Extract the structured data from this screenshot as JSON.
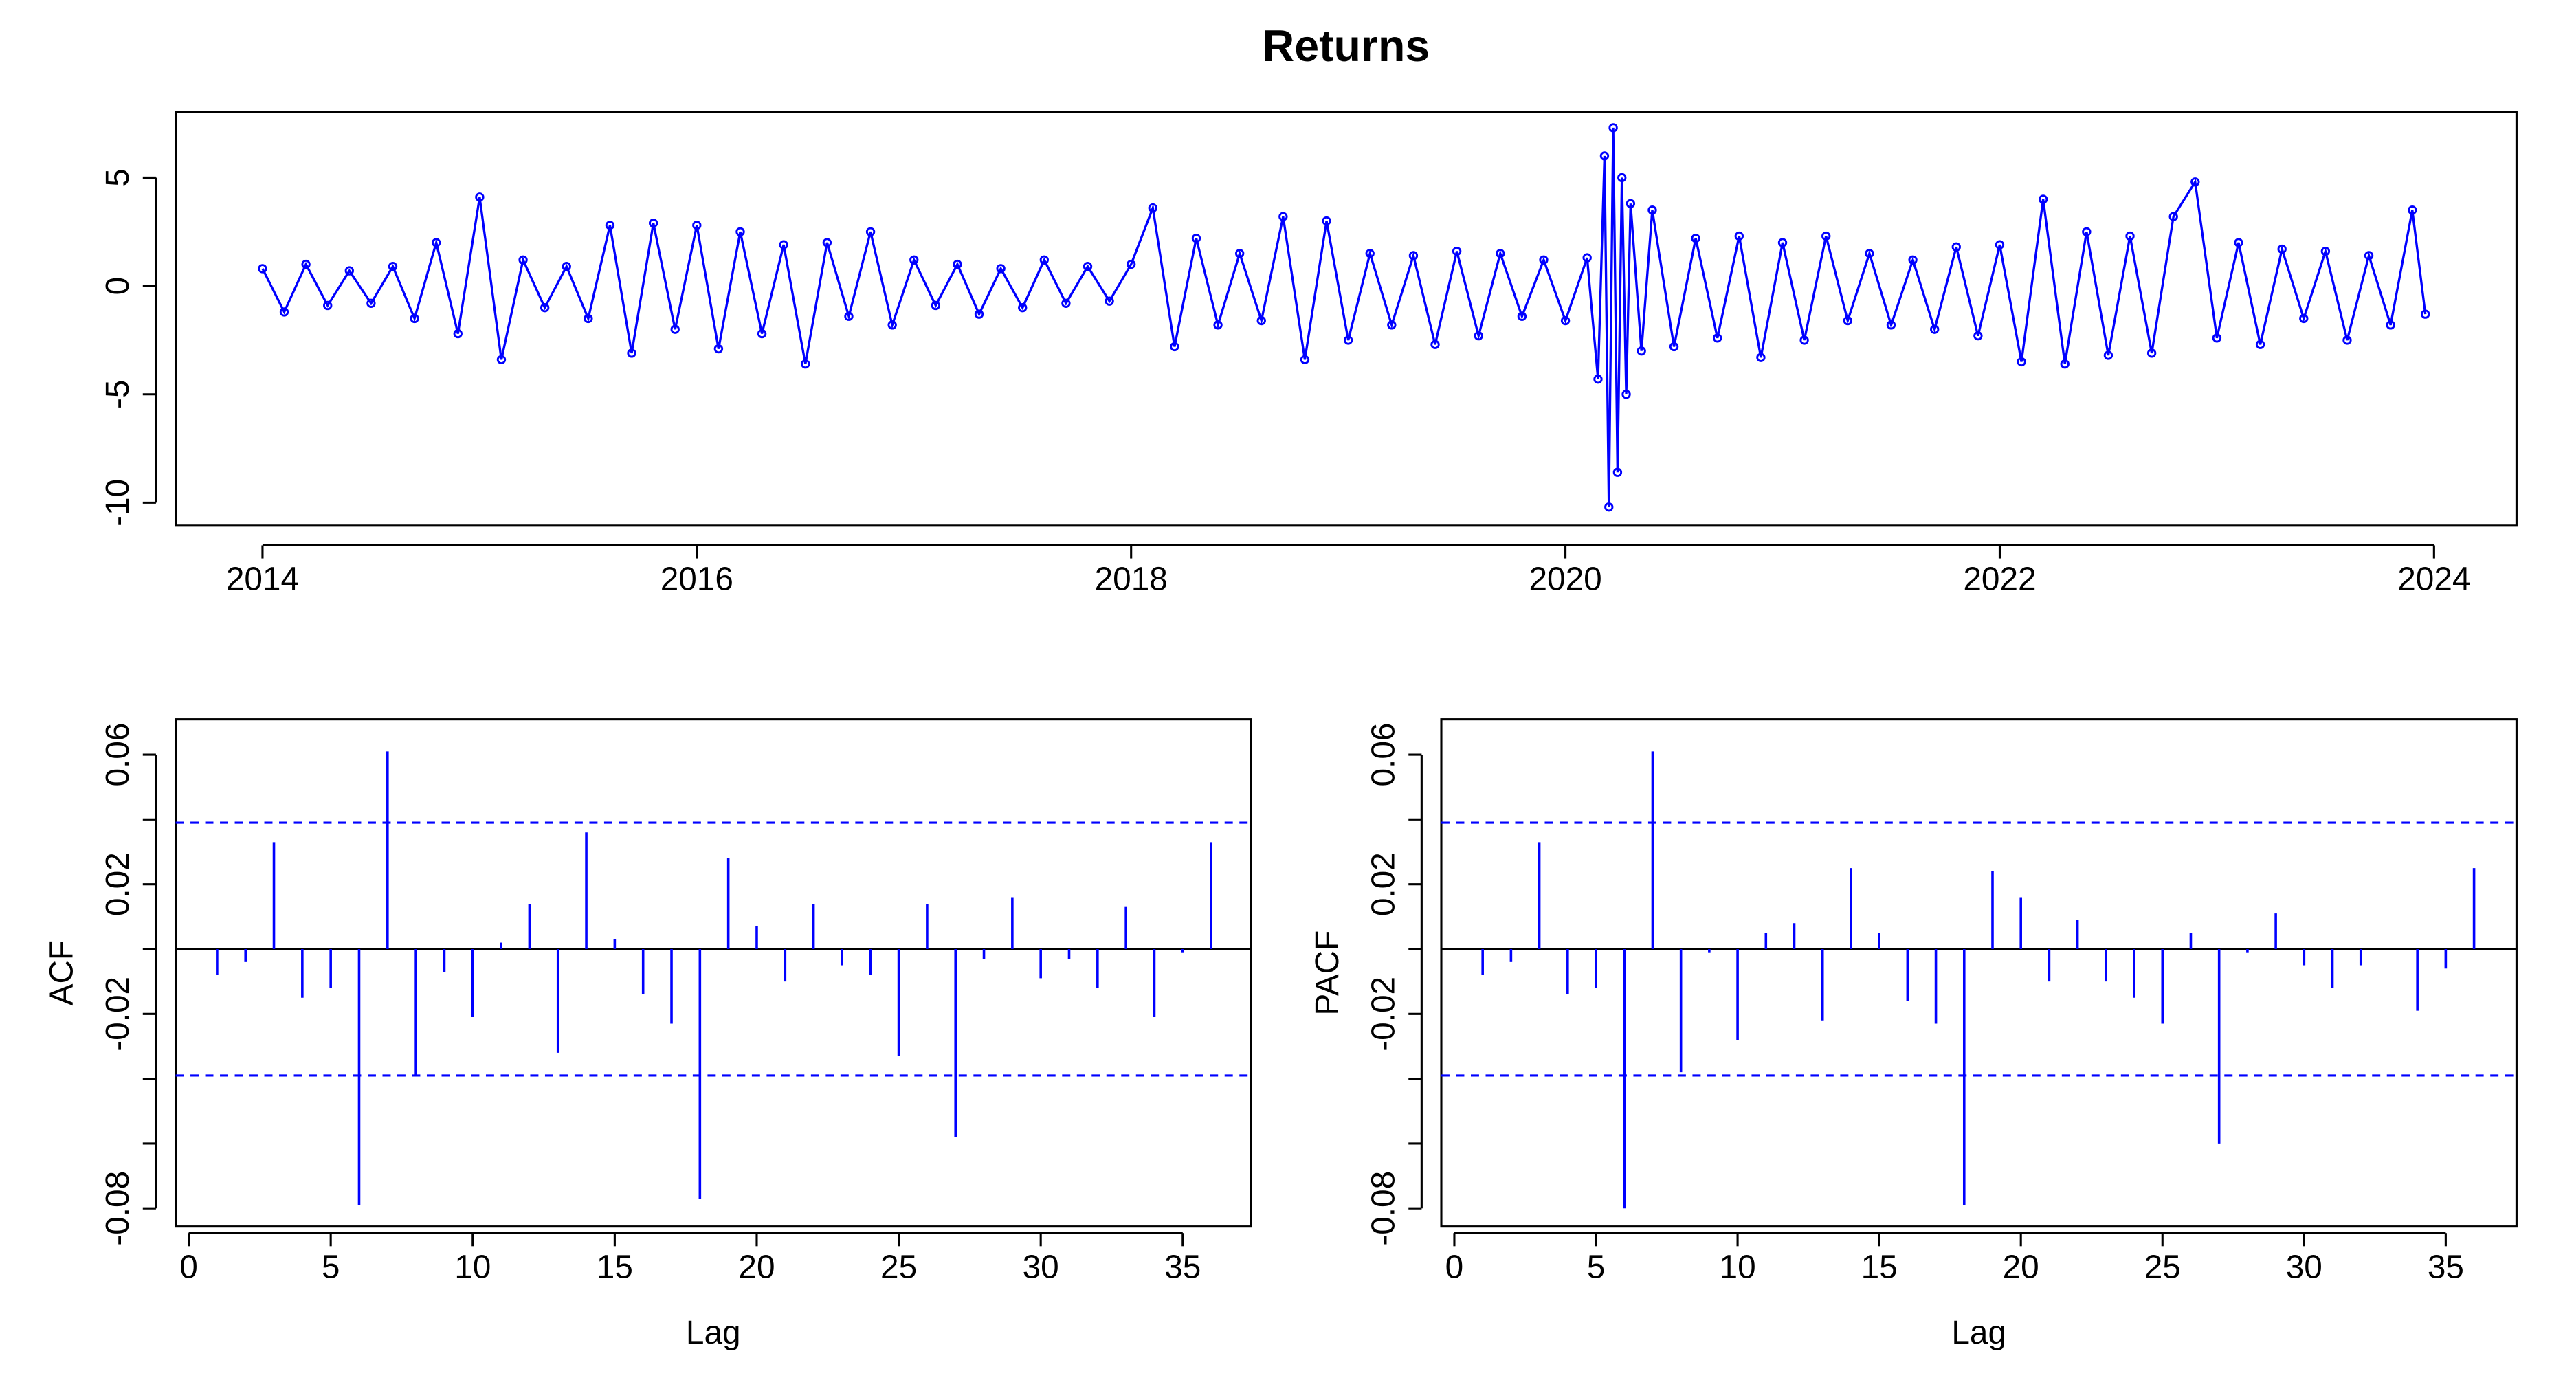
{
  "chart_data": [
    {
      "type": "line",
      "title": "Returns",
      "color": "#0000ff",
      "markers": true,
      "x": [
        2014.0,
        2014.1,
        2014.2,
        2014.3,
        2014.4,
        2014.5,
        2014.6,
        2014.7,
        2014.8,
        2014.9,
        2015.0,
        2015.1,
        2015.2,
        2015.3,
        2015.4,
        2015.5,
        2015.6,
        2015.7,
        2015.8,
        2015.9,
        2016.0,
        2016.1,
        2016.2,
        2016.3,
        2016.4,
        2016.5,
        2016.6,
        2016.7,
        2016.8,
        2016.9,
        2017.0,
        2017.1,
        2017.2,
        2017.3,
        2017.4,
        2017.5,
        2017.6,
        2017.7,
        2017.8,
        2017.9,
        2018.0,
        2018.1,
        2018.2,
        2018.3,
        2018.4,
        2018.5,
        2018.6,
        2018.7,
        2018.8,
        2018.9,
        2019.0,
        2019.1,
        2019.2,
        2019.3,
        2019.4,
        2019.5,
        2019.6,
        2019.7,
        2019.8,
        2019.9,
        2020.0,
        2020.1,
        2020.15,
        2020.18,
        2020.2,
        2020.22,
        2020.24,
        2020.26,
        2020.28,
        2020.3,
        2020.35,
        2020.4,
        2020.5,
        2020.6,
        2020.7,
        2020.8,
        2020.9,
        2021.0,
        2021.1,
        2021.2,
        2021.3,
        2021.4,
        2021.5,
        2021.6,
        2021.7,
        2021.8,
        2021.9,
        2022.0,
        2022.1,
        2022.2,
        2022.3,
        2022.4,
        2022.5,
        2022.6,
        2022.7,
        2022.8,
        2022.9,
        2023.0,
        2023.1,
        2023.2,
        2023.3,
        2023.4,
        2023.5,
        2023.6,
        2023.7,
        2023.8,
        2023.9,
        2023.96
      ],
      "values": [
        0.8,
        -1.2,
        1.0,
        -0.9,
        0.7,
        -0.8,
        0.9,
        -1.5,
        2.0,
        -2.2,
        4.1,
        -3.4,
        1.2,
        -1.0,
        0.9,
        -1.5,
        2.8,
        -3.1,
        2.9,
        -2.0,
        2.8,
        -2.9,
        2.5,
        -2.2,
        1.9,
        -3.6,
        2.0,
        -1.4,
        2.5,
        -1.8,
        1.2,
        -0.9,
        1.0,
        -1.3,
        0.8,
        -1.0,
        1.2,
        -0.8,
        0.9,
        -0.7,
        1.0,
        3.6,
        -2.8,
        2.2,
        -1.8,
        1.5,
        -1.6,
        3.2,
        -3.4,
        3.0,
        -2.5,
        1.5,
        -1.8,
        1.4,
        -2.7,
        1.6,
        -2.3,
        1.5,
        -1.4,
        1.2,
        -1.6,
        1.3,
        -4.3,
        6.0,
        -10.2,
        7.3,
        -8.6,
        5.0,
        -5.0,
        3.8,
        -3.0,
        3.5,
        -2.8,
        2.2,
        -2.4,
        2.3,
        -3.3,
        2.0,
        -2.5,
        2.3,
        -1.6,
        1.5,
        -1.8,
        1.2,
        -2.0,
        1.8,
        -2.3,
        1.9,
        -3.5,
        4.0,
        -3.6,
        2.5,
        -3.2,
        2.3,
        -3.1,
        3.2,
        4.8,
        -2.4,
        2.0,
        -2.7,
        1.7,
        -1.5,
        1.6,
        -2.5,
        1.4,
        -1.8,
        3.5,
        -1.3
      ],
      "xlim": [
        2013.6,
        2024.38
      ],
      "ylim": [
        -11.06,
        8.03
      ],
      "xticks": [
        2014,
        2016,
        2018,
        2020,
        2022,
        2024
      ],
      "yticks": [
        -10,
        -5,
        0,
        5
      ]
    },
    {
      "type": "acf",
      "xlabel": "Lag",
      "ylabel": "ACF",
      "color": "#0000ff",
      "x": [
        1,
        2,
        3,
        4,
        5,
        6,
        7,
        8,
        9,
        10,
        11,
        12,
        13,
        14,
        15,
        16,
        17,
        18,
        19,
        20,
        21,
        22,
        23,
        24,
        25,
        26,
        27,
        28,
        29,
        30,
        31,
        32,
        33,
        34,
        35,
        36
      ],
      "values": [
        -0.008,
        -0.004,
        0.033,
        -0.015,
        -0.012,
        -0.079,
        0.061,
        -0.039,
        -0.007,
        -0.021,
        0.002,
        0.014,
        -0.032,
        0.036,
        0.003,
        -0.014,
        -0.023,
        -0.077,
        0.028,
        0.007,
        -0.01,
        0.014,
        -0.005,
        -0.008,
        -0.033,
        0.014,
        -0.058,
        -0.003,
        0.016,
        -0.009,
        -0.003,
        -0.012,
        0.013,
        -0.021,
        -0.001,
        0.033
      ],
      "ci": [
        -0.039,
        0.039
      ],
      "xlim": [
        -0.46,
        37.4
      ],
      "ylim": [
        -0.0856,
        0.0709
      ],
      "xticks": [
        0,
        5,
        10,
        15,
        20,
        25,
        30,
        35
      ],
      "yticks": [
        -0.08,
        -0.02,
        0.02,
        0.06
      ],
      "yminor": [
        -0.06,
        -0.04,
        0,
        0.04
      ]
    },
    {
      "type": "acf",
      "xlabel": "Lag",
      "ylabel": "PACF",
      "color": "#0000ff",
      "x": [
        1,
        2,
        3,
        4,
        5,
        6,
        7,
        8,
        9,
        10,
        11,
        12,
        13,
        14,
        15,
        16,
        17,
        18,
        19,
        20,
        21,
        22,
        23,
        24,
        25,
        26,
        27,
        28,
        29,
        30,
        31,
        32,
        33,
        34,
        35,
        36
      ],
      "values": [
        -0.008,
        -0.004,
        0.033,
        -0.014,
        -0.012,
        -0.08,
        0.061,
        -0.038,
        -0.001,
        -0.028,
        0.005,
        0.008,
        -0.022,
        0.025,
        0.005,
        -0.016,
        -0.023,
        -0.079,
        0.024,
        0.016,
        -0.01,
        0.009,
        -0.01,
        -0.015,
        -0.023,
        0.005,
        -0.06,
        -0.001,
        0.011,
        -0.005,
        -0.012,
        -0.005,
        0,
        -0.019,
        -0.006,
        0.025
      ],
      "ci": [
        -0.039,
        0.039
      ],
      "xlim": [
        -0.46,
        37.5
      ],
      "ylim": [
        -0.0856,
        0.0709
      ],
      "xticks": [
        0,
        5,
        10,
        15,
        20,
        25,
        30,
        35
      ],
      "yticks": [
        -0.08,
        -0.02,
        0.02,
        0.06
      ],
      "yminor": [
        -0.06,
        -0.04,
        0,
        0.04
      ]
    }
  ]
}
